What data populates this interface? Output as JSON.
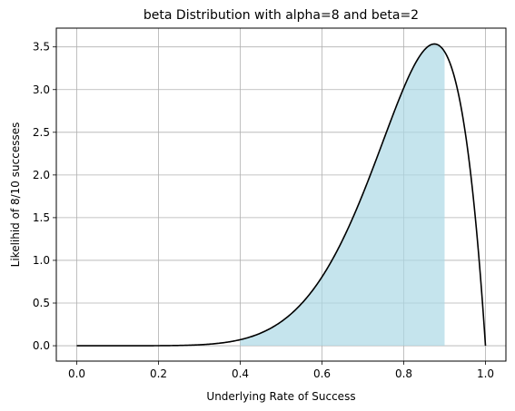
{
  "chart_data": {
    "type": "area",
    "title": "beta Distribution with alpha=8 and beta=2",
    "xlabel": "Underlying Rate of Success",
    "ylabel": "Likelihid of 8/10 successes",
    "xlim": [
      -0.05,
      1.05
    ],
    "ylim": [
      -0.18,
      3.72
    ],
    "x_ticks": [
      0.0,
      0.2,
      0.4,
      0.6,
      0.8,
      1.0
    ],
    "x_tick_labels": [
      "0.0",
      "0.2",
      "0.4",
      "0.6",
      "0.8",
      "1.0"
    ],
    "y_ticks": [
      0.0,
      0.5,
      1.0,
      1.5,
      2.0,
      2.5,
      3.0,
      3.5
    ],
    "y_tick_labels": [
      "0.0",
      "0.5",
      "1.0",
      "1.5",
      "2.0",
      "2.5",
      "3.0",
      "3.5"
    ],
    "grid": true,
    "distribution": {
      "name": "beta",
      "alpha": 8,
      "beta": 2
    },
    "series": [
      {
        "kind": "line",
        "color": "#000000",
        "x_range": [
          0.0,
          1.0
        ]
      },
      {
        "kind": "shaded-area",
        "color": "#add8e6",
        "opacity": 0.7,
        "x_range": [
          0.4,
          0.9
        ]
      }
    ]
  }
}
